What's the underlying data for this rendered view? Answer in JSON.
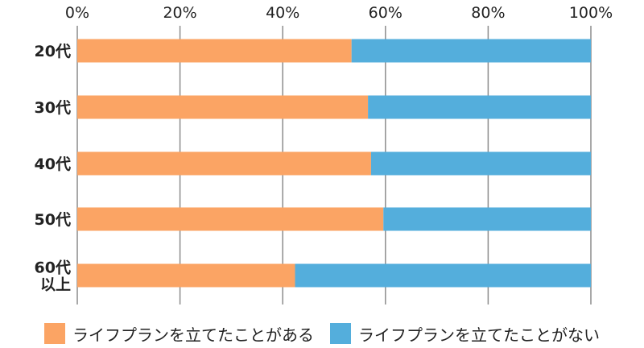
{
  "chart_data": {
    "type": "bar",
    "orientation": "horizontal",
    "stacked": "percent",
    "categories": [
      "20代",
      "30代",
      "40代",
      "50代",
      "60代 以上"
    ],
    "category_lines": [
      [
        "20代"
      ],
      [
        "30代"
      ],
      [
        "40代"
      ],
      [
        "50代"
      ],
      [
        "60代",
        "以上"
      ]
    ],
    "series": [
      {
        "name": "ライフプランを立てたことがある",
        "values": [
          53.4,
          56.6,
          57.2,
          59.6,
          42.4
        ],
        "color": "#FBA464"
      },
      {
        "name": "ライフプランを立てたことがない",
        "values": [
          46.6,
          43.4,
          42.8,
          40.4,
          57.6
        ],
        "color": "#54AEDC"
      }
    ],
    "xlim": [
      0,
      100
    ],
    "ticks": [
      0,
      20,
      40,
      60,
      80,
      100
    ],
    "tick_labels": [
      "0%",
      "20%",
      "40%",
      "60%",
      "80%",
      "100%"
    ],
    "axis_position": "top",
    "grid": true,
    "legend_position": "bottom"
  }
}
